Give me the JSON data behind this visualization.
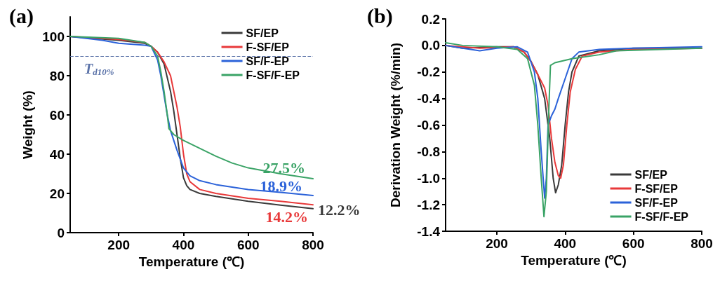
{
  "chart_data": [
    {
      "type": "line",
      "title": "(a)",
      "xlabel": "Temperature (℃)",
      "ylabel": "Weight (%)",
      "xlim": [
        50,
        800
      ],
      "xticks": [
        200,
        400,
        600,
        800
      ],
      "ylim": [
        0,
        110
      ],
      "yticks": [
        0,
        20,
        40,
        60,
        80,
        100
      ],
      "grid": false,
      "legend": "top right",
      "marker": "none",
      "line_style": "solid",
      "series": [
        {
          "name": "SF/EP",
          "color": "#3a3a3a",
          "x": [
            50,
            100,
            200,
            280,
            300,
            320,
            340,
            360,
            370,
            380,
            390,
            400,
            410,
            420,
            450,
            500,
            600,
            700,
            800
          ],
          "values": [
            100,
            99.3,
            98,
            96.5,
            95,
            92,
            86,
            72,
            62,
            50,
            38,
            28,
            24,
            22,
            20,
            18.5,
            16,
            14,
            12.2
          ],
          "value_labels": [
            null,
            null,
            null,
            null,
            null,
            null,
            null,
            null,
            null,
            null,
            null,
            null,
            null,
            null,
            null,
            null,
            null,
            null,
            "12.2%"
          ]
        },
        {
          "name": "F-SF/EP",
          "color": "#e8393a",
          "x": [
            50,
            200,
            280,
            300,
            320,
            340,
            360,
            380,
            390,
            400,
            410,
            420,
            450,
            500,
            600,
            700,
            800
          ],
          "values": [
            100,
            98.5,
            97,
            95,
            92,
            87,
            80,
            64,
            54,
            40,
            30,
            26,
            22,
            20,
            17.5,
            16,
            14.2
          ],
          "value_labels": [
            null,
            null,
            null,
            null,
            null,
            null,
            null,
            null,
            null,
            null,
            null,
            null,
            null,
            null,
            null,
            null,
            "14.2%"
          ]
        },
        {
          "name": "SF/F-EP",
          "color": "#2b62d9",
          "x": [
            50,
            150,
            200,
            280,
            300,
            320,
            330,
            340,
            350,
            360,
            380,
            400,
            420,
            450,
            500,
            600,
            700,
            800
          ],
          "values": [
            100,
            98,
            96.5,
            95.5,
            95,
            88,
            80,
            70,
            60,
            52,
            42,
            33,
            29,
            26.5,
            24.5,
            22,
            20.5,
            18.9
          ],
          "value_labels": [
            null,
            null,
            null,
            null,
            null,
            null,
            null,
            null,
            null,
            null,
            null,
            null,
            null,
            null,
            null,
            null,
            null,
            "18.9%"
          ]
        },
        {
          "name": "F-SF/F-EP",
          "color": "#3aa366",
          "x": [
            50,
            200,
            280,
            300,
            320,
            330,
            340,
            350,
            355,
            370,
            400,
            450,
            500,
            550,
            600,
            700,
            800
          ],
          "values": [
            100,
            99,
            97,
            95,
            90,
            82,
            72,
            60,
            53,
            50,
            47,
            43,
            39,
            35.5,
            33,
            30,
            27.5
          ],
          "value_labels": [
            null,
            null,
            null,
            null,
            null,
            null,
            null,
            null,
            null,
            null,
            null,
            null,
            null,
            null,
            null,
            null,
            "27.5%"
          ]
        }
      ],
      "ref_lines": [
        {
          "axis": "y",
          "value": 90,
          "label": "T$_{d10%}$",
          "color": "#5a72a8",
          "line_style": "dashed"
        }
      ]
    },
    {
      "type": "line",
      "title": "(b)",
      "xlabel": "Temperature (℃)",
      "ylabel": "Derivation Weight (%/min)",
      "xlim": [
        50,
        800
      ],
      "xticks": [
        200,
        400,
        600,
        800
      ],
      "ylim": [
        -1.4,
        0.2
      ],
      "yticks": [
        {
          "value": -1.4,
          "label": "-1.4"
        },
        {
          "value": -1.2,
          "label": "-1.2"
        },
        {
          "value": -1,
          "label": "-1.0"
        },
        {
          "value": -0.8,
          "label": "-0.8"
        },
        {
          "value": -0.6,
          "label": "-0.6"
        },
        {
          "value": -0.4,
          "label": "-0.4"
        },
        {
          "value": -0.2,
          "label": "-0.2"
        },
        {
          "value": 0,
          "label": "0.0"
        },
        {
          "value": 0.2,
          "label": "0.2"
        }
      ],
      "grid": false,
      "legend": "bottom right",
      "marker": "none",
      "line_style": "solid",
      "series": [
        {
          "name": "SF/EP",
          "color": "#3a3a3a",
          "x": [
            50,
            100,
            200,
            250,
            280,
            300,
            320,
            340,
            355,
            365,
            372,
            380,
            390,
            400,
            410,
            420,
            440,
            500,
            600,
            800
          ],
          "values": [
            0,
            -0.02,
            -0.01,
            -0.01,
            -0.05,
            -0.12,
            -0.22,
            -0.4,
            -0.7,
            -1.0,
            -1.11,
            -1.05,
            -0.9,
            -0.6,
            -0.35,
            -0.2,
            -0.08,
            -0.04,
            -0.02,
            -0.02
          ]
        },
        {
          "name": "F-SF/EP",
          "color": "#e8393a",
          "x": [
            50,
            150,
            250,
            280,
            300,
            320,
            340,
            350,
            360,
            370,
            380,
            387,
            395,
            405,
            415,
            430,
            450,
            500,
            600,
            800
          ],
          "values": [
            0,
            -0.02,
            -0.01,
            -0.05,
            -0.12,
            -0.22,
            -0.32,
            -0.45,
            -0.7,
            -0.88,
            -0.98,
            -1.0,
            -0.9,
            -0.6,
            -0.35,
            -0.18,
            -0.08,
            -0.05,
            -0.03,
            -0.02
          ]
        },
        {
          "name": "SF/F-EP",
          "color": "#2b62d9",
          "x": [
            50,
            100,
            150,
            200,
            260,
            290,
            310,
            320,
            330,
            340,
            345,
            350,
            360,
            370,
            380,
            400,
            420,
            440,
            500,
            600,
            800
          ],
          "values": [
            0,
            -0.02,
            -0.04,
            -0.02,
            -0.01,
            -0.05,
            -0.2,
            -0.4,
            -0.8,
            -1.15,
            -1.0,
            -0.6,
            -0.53,
            -0.48,
            -0.4,
            -0.25,
            -0.1,
            -0.05,
            -0.03,
            -0.02,
            -0.01
          ]
        },
        {
          "name": "F-SF/F-EP",
          "color": "#3aa366",
          "x": [
            50,
            100,
            200,
            260,
            290,
            310,
            320,
            330,
            338,
            345,
            352,
            357,
            370,
            420,
            500,
            550,
            800
          ],
          "values": [
            0.02,
            0,
            -0.01,
            -0.03,
            -0.1,
            -0.3,
            -0.6,
            -1.0,
            -1.29,
            -1.1,
            -0.5,
            -0.15,
            -0.13,
            -0.1,
            -0.07,
            -0.04,
            -0.02
          ]
        }
      ]
    }
  ]
}
